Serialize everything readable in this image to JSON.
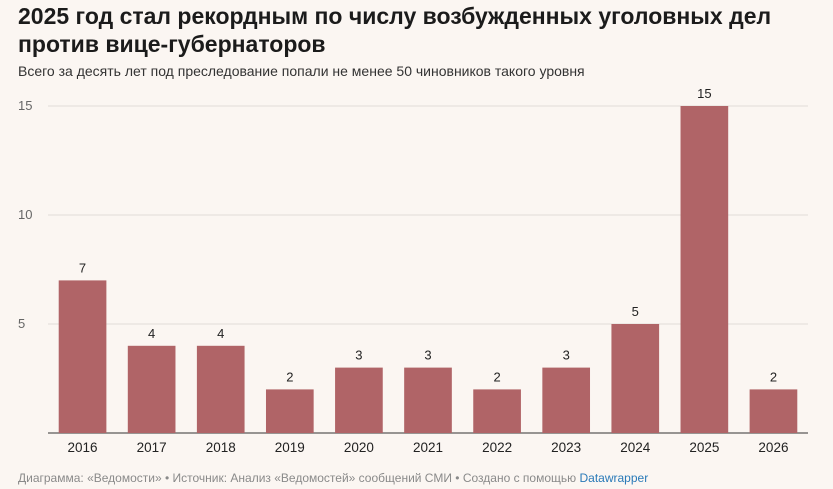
{
  "chart_data": {
    "type": "bar",
    "title": "2025 год стал рекордным по числу возбужденных уголовных дел против вице-губернаторов",
    "subtitle": "Всего за десять лет под преследование попали не менее 50 чиновников такого уровня",
    "categories": [
      "2016",
      "2017",
      "2018",
      "2019",
      "2020",
      "2021",
      "2022",
      "2023",
      "2024",
      "2025",
      "2026"
    ],
    "values": [
      7,
      4,
      4,
      2,
      3,
      3,
      2,
      3,
      5,
      15,
      2
    ],
    "yticks": [
      5,
      10,
      15
    ],
    "ylim": [
      0,
      15
    ],
    "grid": true,
    "bar_color": "#b06467",
    "grid_color": "#e2dcd8",
    "xlabel": "",
    "ylabel": ""
  },
  "footer": {
    "text": "Диаграмма: «Ведомости» • Источник: Анализ «Ведомостей» сообщений СМИ • Создано с помощью ",
    "brand": "Datawrapper",
    "brand_color": "#2a7ab8"
  }
}
